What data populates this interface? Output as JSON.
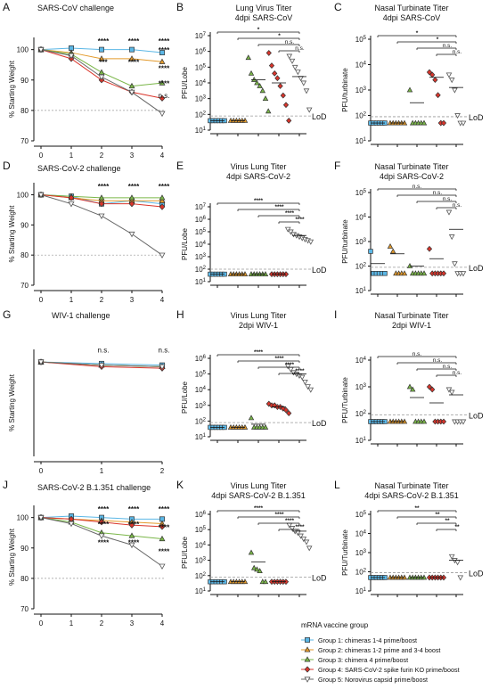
{
  "legend": {
    "title": "mRNA vaccine group",
    "items": [
      {
        "label": "Group 1: chimeras 1-4 prime/boost",
        "color": "#5bb7e6",
        "marker": "square"
      },
      {
        "label": "Group 2: chimeras 1-2 prime and 3-4 boost",
        "color": "#e39a2b",
        "marker": "triangle-up"
      },
      {
        "label": "Group 3: chimera 4 prime/boost",
        "color": "#7ab648",
        "marker": "triangle-up"
      },
      {
        "label": "Group 4: SARS-CoV-2 spike furin KO prime/boost",
        "color": "#d9352b",
        "marker": "diamond"
      },
      {
        "label": "Group 5: Norovirus capsid prime/boost",
        "color": "#ffffff",
        "marker": "triangle-down"
      }
    ]
  },
  "lod_label": "LoD",
  "chart_data": [
    {
      "panel": "A",
      "type": "line",
      "title": "SARS-CoV challenge",
      "ylabel": "% Starting Weight",
      "x": [
        0,
        1,
        2,
        3,
        4
      ],
      "xlim": [
        0,
        4
      ],
      "ylim": [
        70,
        104
      ],
      "yticks": [
        70,
        80,
        90,
        100
      ],
      "ref_line": 80,
      "series": [
        {
          "group": 1,
          "values": [
            100,
            100.5,
            100,
            100,
            99
          ]
        },
        {
          "group": 2,
          "values": [
            100,
            99,
            97,
            97,
            96
          ]
        },
        {
          "group": 3,
          "values": [
            100,
            98.5,
            92.5,
            88,
            89
          ]
        },
        {
          "group": 4,
          "values": [
            100,
            97,
            90,
            86,
            84
          ]
        },
        {
          "group": 5,
          "values": [
            100,
            98,
            91,
            86,
            79
          ]
        }
      ],
      "annotations": [
        {
          "x": 2,
          "y": 102,
          "text": "****"
        },
        {
          "x": 3,
          "y": 102,
          "text": "****"
        },
        {
          "x": 4,
          "y": 102,
          "text": "****"
        },
        {
          "x": 4,
          "y": 99,
          "text": "****"
        },
        {
          "x": 2,
          "y": 95,
          "text": "***"
        },
        {
          "x": 3,
          "y": 95,
          "text": "****"
        },
        {
          "x": 4,
          "y": 93,
          "text": "****"
        },
        {
          "x": 4,
          "y": 88,
          "text": "****"
        },
        {
          "x": 4,
          "y": 84,
          "text": "n.s."
        }
      ]
    },
    {
      "panel": "B",
      "type": "scatter",
      "title": "Lung Virus Titer\n4dpi SARS-CoV",
      "ylabel": "PFU/Lobe",
      "log": true,
      "ylim": [
        1,
        7
      ],
      "ytick_exp": [
        1,
        2,
        3,
        4,
        5,
        6,
        7
      ],
      "lod": 1.9,
      "points": [
        [
          1.6,
          1.6,
          1.6,
          1.6,
          1.6,
          1.6
        ],
        [
          1.6,
          1.6,
          1.6,
          1.6,
          1.6,
          1.6
        ],
        [
          5.6,
          4.6,
          4.2,
          4.0,
          3.8,
          3.5,
          3.0,
          2.2
        ],
        [
          5.9,
          5.1,
          4.6,
          4.3,
          3.8,
          3.2,
          2.6,
          1.6
        ],
        [
          5.7,
          5.4,
          5.0,
          4.7,
          4.3,
          4.0,
          3.5,
          2.3
        ]
      ],
      "means": [
        1.6,
        1.6,
        4.2,
        4.0,
        4.4
      ],
      "brackets": [
        {
          "to": 1,
          "text": "*"
        },
        {
          "to": 2,
          "text": "*"
        },
        {
          "to": 3,
          "text": "n.s."
        },
        {
          "to": 4,
          "text": "n.s."
        }
      ]
    },
    {
      "panel": "C",
      "type": "scatter",
      "title": "Nasal Turbinate Titer\n4dpi SARS-CoV",
      "ylabel": "PFU/turbinate",
      "log": true,
      "ylim": [
        1,
        5
      ],
      "ytick_exp": [
        1,
        2,
        3,
        4,
        5
      ],
      "lod": 1.95,
      "points": [
        [
          1.7,
          1.7,
          1.7,
          1.7,
          1.7,
          1.7
        ],
        [
          1.7,
          1.7,
          1.7,
          1.7,
          1.7,
          1.7
        ],
        [
          3.0,
          1.7,
          1.7,
          1.7,
          1.7,
          1.7
        ],
        [
          3.7,
          3.6,
          3.4,
          2.8,
          1.7,
          1.7
        ],
        [
          3.6,
          3.4,
          3.0,
          2.0,
          1.7,
          1.7
        ]
      ],
      "means": [
        1.7,
        1.7,
        2.5,
        3.5,
        3.1
      ],
      "brackets": [
        {
          "to": 1,
          "text": "*"
        },
        {
          "to": 2,
          "text": "*"
        },
        {
          "to": 3,
          "text": "n.s."
        },
        {
          "to": 4,
          "text": "n.s."
        }
      ]
    },
    {
      "panel": "D",
      "type": "line",
      "title": "SARS-CoV-2 challenge",
      "ylabel": "% Starting Weight",
      "x": [
        0,
        1,
        2,
        3,
        4
      ],
      "xlim": [
        0,
        4
      ],
      "ylim": [
        70,
        104
      ],
      "yticks": [
        70,
        80,
        90,
        100
      ],
      "ref_line": 80,
      "series": [
        {
          "group": 1,
          "values": [
            100,
            99.5,
            97,
            98,
            97
          ]
        },
        {
          "group": 2,
          "values": [
            100,
            99,
            98,
            98,
            98
          ]
        },
        {
          "group": 3,
          "values": [
            100,
            99.5,
            99,
            99,
            99
          ]
        },
        {
          "group": 4,
          "values": [
            100,
            99,
            97,
            97,
            96
          ]
        },
        {
          "group": 5,
          "values": [
            100,
            97,
            93,
            87,
            80
          ]
        }
      ],
      "annotations": [
        {
          "x": 2,
          "y": 102,
          "text": "****"
        },
        {
          "x": 3,
          "y": 102,
          "text": "****"
        },
        {
          "x": 4,
          "y": 102,
          "text": "****"
        }
      ]
    },
    {
      "panel": "E",
      "type": "scatter",
      "title": "Virus Lung Titer\n4dpi SARS-CoV-2",
      "ylabel": "PFU/Lobe",
      "log": true,
      "ylim": [
        1,
        7
      ],
      "ytick_exp": [
        1,
        2,
        3,
        4,
        5,
        6,
        7
      ],
      "lod": 2.0,
      "points": [
        [
          1.6,
          1.6,
          1.6,
          1.6,
          1.6,
          1.6
        ],
        [
          1.6,
          1.6,
          1.6,
          1.6,
          1.6,
          1.6
        ],
        [
          1.6,
          1.6,
          1.6,
          1.6,
          1.6,
          1.6
        ],
        [
          1.6,
          1.6,
          1.6,
          1.6,
          1.6,
          1.6
        ],
        [
          5.2,
          5.0,
          4.8,
          4.7,
          4.6,
          4.5,
          4.4,
          4.3,
          4.2
        ]
      ],
      "means": [
        1.6,
        1.6,
        1.6,
        1.6,
        4.7
      ],
      "brackets": [
        {
          "to": 1,
          "text": "****"
        },
        {
          "to": 2,
          "text": "****"
        },
        {
          "to": 3,
          "text": "****"
        },
        {
          "to": 4,
          "text": "****"
        }
      ]
    },
    {
      "panel": "F",
      "type": "scatter",
      "title": "Nasal Turbinate Titer\n4dpi SARS-CoV-2",
      "ylabel": "PFU/turbinate",
      "log": true,
      "ylim": [
        1,
        5
      ],
      "ytick_exp": [
        1,
        2,
        3,
        4,
        5
      ],
      "lod": 1.95,
      "points": [
        [
          2.6,
          1.7,
          1.7,
          1.7,
          1.7,
          1.7
        ],
        [
          2.8,
          2.6,
          1.7,
          1.7,
          1.7,
          1.7
        ],
        [
          2.0,
          1.7,
          1.7,
          1.7,
          1.7,
          1.7
        ],
        [
          2.7,
          1.7,
          1.7,
          1.7,
          1.7,
          1.7
        ],
        [
          4.2,
          3.2,
          2.1,
          1.7,
          1.7,
          1.7
        ]
      ],
      "means": [
        2.1,
        2.5,
        2.0,
        2.3,
        3.5
      ],
      "brackets": [
        {
          "to": 1,
          "text": "n.s."
        },
        {
          "to": 2,
          "text": "n.s."
        },
        {
          "to": 3,
          "text": "n.s."
        },
        {
          "to": 4,
          "text": "n.s."
        }
      ]
    },
    {
      "panel": "G",
      "type": "line",
      "title": "WIV-1 challenge",
      "ylabel": "% Starting Weight",
      "x": [
        0,
        1,
        2
      ],
      "xlim": [
        0,
        2
      ],
      "ylim": [
        70,
        104
      ],
      "yticks": [],
      "ref_line": null,
      "series": [
        {
          "group": 1,
          "values": [
            100,
            99.5,
            99
          ]
        },
        {
          "group": 2,
          "values": [
            100,
            99,
            98.5
          ]
        },
        {
          "group": 3,
          "values": [
            100,
            99,
            98.5
          ]
        },
        {
          "group": 4,
          "values": [
            100,
            98.5,
            98
          ]
        },
        {
          "group": 5,
          "values": [
            100,
            99,
            98.5
          ]
        }
      ],
      "annotations": [
        {
          "x": 1,
          "y": 103,
          "text": "n.s."
        },
        {
          "x": 2,
          "y": 103,
          "text": "n.s."
        }
      ]
    },
    {
      "panel": "H",
      "type": "scatter",
      "title": "Virus Lung Titer\n2dpi WIV-1",
      "ylabel": "PFU/Lobe",
      "log": true,
      "ylim": [
        1,
        6
      ],
      "ytick_exp": [
        1,
        2,
        3,
        4,
        5,
        6
      ],
      "lod": 1.9,
      "points": [
        [
          1.6,
          1.6,
          1.6,
          1.6,
          1.6,
          1.6
        ],
        [
          1.6,
          1.6,
          1.6,
          1.6,
          1.6,
          1.6
        ],
        [
          2.2,
          1.6,
          1.6,
          1.6,
          1.6,
          1.6
        ],
        [
          3.1,
          3.0,
          3.0,
          2.9,
          2.9,
          2.8,
          2.7,
          2.5
        ],
        [
          5.5,
          5.3,
          5.1,
          5.0,
          4.9,
          4.8,
          4.5,
          4.2,
          4.0
        ]
      ],
      "means": [
        1.6,
        1.6,
        1.8,
        2.9,
        5.0
      ],
      "brackets": [
        {
          "to": 1,
          "text": "****"
        },
        {
          "to": 2,
          "text": "****"
        },
        {
          "to": 3,
          "text": "****"
        },
        {
          "to": 4,
          "text": "****"
        }
      ]
    },
    {
      "panel": "I",
      "type": "scatter",
      "title": "Nasal Turbinate Titer\n2dpi WIV-1",
      "ylabel": "PFU/Turbinate",
      "log": true,
      "ylim": [
        1,
        4
      ],
      "ytick_exp": [
        1,
        2,
        3,
        4
      ],
      "lod": 1.95,
      "points": [
        [
          1.7,
          1.7,
          1.7,
          1.7,
          1.7,
          1.7
        ],
        [
          1.7,
          1.7,
          1.7,
          1.7,
          1.7,
          1.7
        ],
        [
          3.0,
          2.9,
          1.7,
          1.7,
          1.7,
          1.7
        ],
        [
          3.0,
          2.9,
          1.7,
          1.7,
          1.7,
          1.7
        ],
        [
          2.9,
          2.8,
          1.7,
          1.7,
          1.7,
          1.7
        ]
      ],
      "means": [
        1.7,
        1.7,
        2.6,
        2.4,
        2.7
      ],
      "brackets": [
        {
          "to": 1,
          "text": "n.s."
        },
        {
          "to": 2,
          "text": "n.s."
        },
        {
          "to": 3,
          "text": "n.s."
        },
        {
          "to": 4,
          "text": "n.s."
        }
      ]
    },
    {
      "panel": "J",
      "type": "line",
      "title": "SARS-CoV-2 B.1.351 challenge",
      "ylabel": "% Starting Weight",
      "x": [
        0,
        1,
        2,
        3,
        4
      ],
      "xlim": [
        0,
        4
      ],
      "ylim": [
        70,
        104
      ],
      "yticks": [
        70,
        80,
        90,
        100
      ],
      "ref_line": 80,
      "series": [
        {
          "group": 1,
          "values": [
            100,
            100.5,
            100,
            99.5,
            99.5
          ]
        },
        {
          "group": 2,
          "values": [
            100,
            99.5,
            99,
            98.5,
            98
          ]
        },
        {
          "group": 3,
          "values": [
            100,
            98.5,
            95,
            94,
            93
          ]
        },
        {
          "group": 4,
          "values": [
            100,
            99.5,
            98.5,
            97.5,
            97
          ]
        },
        {
          "group": 5,
          "values": [
            100,
            98,
            94,
            91,
            84
          ]
        }
      ],
      "annotations": [
        {
          "x": 2,
          "y": 102,
          "text": "****"
        },
        {
          "x": 3,
          "y": 102,
          "text": "****"
        },
        {
          "x": 4,
          "y": 102,
          "text": "****"
        },
        {
          "x": 2,
          "y": 97,
          "text": "****"
        },
        {
          "x": 3,
          "y": 97,
          "text": "****"
        },
        {
          "x": 4,
          "y": 96,
          "text": "****"
        },
        {
          "x": 2,
          "y": 91,
          "text": "****"
        },
        {
          "x": 3,
          "y": 91,
          "text": "****"
        },
        {
          "x": 4,
          "y": 88,
          "text": "****"
        }
      ]
    },
    {
      "panel": "K",
      "type": "scatter",
      "title": "Virus Lung Titer\n4dpi SARS-CoV-2 B.1.351",
      "ylabel": "PFU/Lobe",
      "log": true,
      "ylim": [
        1,
        6
      ],
      "ytick_exp": [
        1,
        2,
        3,
        4,
        5,
        6
      ],
      "lod": 1.9,
      "points": [
        [
          1.6,
          1.6,
          1.6,
          1.6,
          1.6,
          1.6
        ],
        [
          1.6,
          1.6,
          1.6,
          1.6,
          1.6,
          1.6
        ],
        [
          3.5,
          2.5,
          2.4,
          2.3,
          1.6,
          1.6
        ],
        [
          1.6,
          1.6,
          1.6,
          1.6,
          1.6,
          1.6
        ],
        [
          5.3,
          5.1,
          4.9,
          4.8,
          4.6,
          4.4,
          4.2,
          3.8
        ]
      ],
      "means": [
        1.6,
        1.6,
        2.9,
        1.6,
        4.9
      ],
      "brackets": [
        {
          "to": 1,
          "text": "****"
        },
        {
          "to": 2,
          "text": "****"
        },
        {
          "to": 3,
          "text": "****"
        },
        {
          "to": 4,
          "text": "****"
        }
      ]
    },
    {
      "panel": "L",
      "type": "scatter",
      "title": "Nasal Turbinate Titer\n4dpi SARS-CoV-2 B.1.351",
      "ylabel": "PFU/Turbinate",
      "log": true,
      "ylim": [
        1,
        5
      ],
      "ytick_exp": [
        1,
        2,
        3,
        4,
        5
      ],
      "lod": 1.95,
      "points": [
        [
          1.7,
          1.7,
          1.7,
          1.7,
          1.7,
          1.7
        ],
        [
          1.7,
          1.7,
          1.7,
          1.7,
          1.7,
          1.7
        ],
        [
          1.7,
          1.7,
          1.7,
          1.7,
          1.7,
          1.7
        ],
        [
          1.7,
          1.7,
          1.7,
          1.7,
          1.7,
          1.7
        ],
        [
          2.8,
          2.6,
          2.5,
          1.7
        ]
      ],
      "means": [
        1.7,
        1.7,
        1.7,
        1.7,
        2.6
      ],
      "brackets": [
        {
          "to": 1,
          "text": "**"
        },
        {
          "to": 2,
          "text": "**"
        },
        {
          "to": 3,
          "text": "**"
        },
        {
          "to": 4,
          "text": "**"
        }
      ]
    }
  ]
}
